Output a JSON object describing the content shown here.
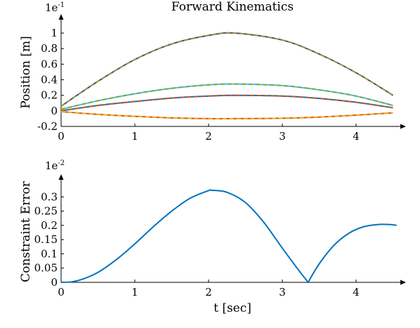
{
  "chart_data": [
    {
      "type": "line",
      "title": "Forward Kinematics",
      "xlabel": "",
      "ylabel": "Position [m]",
      "exponent_label": {
        "base": "1e",
        "power": "-1"
      },
      "xlim": [
        0,
        4.6
      ],
      "ylim": [
        -0.2,
        1.1
      ],
      "x_ticks": [
        "0",
        "1",
        "2",
        "3",
        "4"
      ],
      "x_tick_values": [
        0,
        1,
        2,
        3,
        4
      ],
      "y_ticks": [
        "-0.2",
        "0",
        "0.2",
        "0.4",
        "0.6",
        "0.8",
        "1"
      ],
      "y_tick_values": [
        -0.2,
        0,
        0.2,
        0.4,
        0.6,
        0.8,
        1
      ],
      "series": [
        {
          "color": "#7E2F8E",
          "style": "solid",
          "x": [
            0,
            0.5,
            1,
            1.5,
            2,
            2.36,
            3,
            3.5,
            4,
            4.5
          ],
          "values": [
            0.06,
            0.38,
            0.66,
            0.86,
            0.97,
            1.0,
            0.91,
            0.73,
            0.49,
            0.2
          ]
        },
        {
          "color": "#77AC30",
          "style": "dashed",
          "x": [
            0,
            0.5,
            1,
            1.5,
            2,
            2.36,
            3,
            3.5,
            4,
            4.5
          ],
          "values": [
            0.06,
            0.38,
            0.66,
            0.86,
            0.97,
            1.0,
            0.91,
            0.73,
            0.49,
            0.2
          ]
        },
        {
          "color": "#4DBEEE",
          "style": "solid",
          "x": [
            0,
            0.5,
            1,
            1.5,
            2,
            2.36,
            3,
            3.5,
            4,
            4.5
          ],
          "values": [
            0.02,
            0.13,
            0.22,
            0.29,
            0.335,
            0.345,
            0.325,
            0.27,
            0.19,
            0.07
          ]
        },
        {
          "color": "#77AC30",
          "style": "dashed",
          "x": [
            0,
            0.5,
            1,
            1.5,
            2,
            2.36,
            3,
            3.5,
            4,
            4.5
          ],
          "values": [
            0.02,
            0.13,
            0.22,
            0.29,
            0.335,
            0.345,
            0.325,
            0.27,
            0.19,
            0.07
          ]
        },
        {
          "color": "#0072BD",
          "style": "solid",
          "x": [
            0,
            0.5,
            1,
            1.5,
            2,
            2.36,
            3,
            3.5,
            4,
            4.5
          ],
          "values": [
            0.0,
            0.07,
            0.12,
            0.165,
            0.19,
            0.2,
            0.19,
            0.16,
            0.11,
            0.04
          ]
        },
        {
          "color": "#D95319",
          "style": "dashed",
          "x": [
            0,
            0.5,
            1,
            1.5,
            2,
            2.36,
            3,
            3.5,
            4,
            4.5
          ],
          "values": [
            0.0,
            0.07,
            0.12,
            0.165,
            0.19,
            0.2,
            0.19,
            0.16,
            0.11,
            0.04
          ]
        },
        {
          "color": "#D95319",
          "style": "solid",
          "x": [
            0,
            0.5,
            1,
            1.5,
            2,
            2.36,
            3,
            3.5,
            4,
            4.5
          ],
          "values": [
            -0.01,
            -0.045,
            -0.07,
            -0.09,
            -0.1,
            -0.1,
            -0.095,
            -0.08,
            -0.055,
            -0.025
          ]
        },
        {
          "color": "#EDB120",
          "style": "dashed",
          "x": [
            0,
            0.5,
            1,
            1.5,
            2,
            2.36,
            3,
            3.5,
            4,
            4.5
          ],
          "values": [
            -0.01,
            -0.045,
            -0.07,
            -0.09,
            -0.1,
            -0.1,
            -0.095,
            -0.08,
            -0.055,
            -0.025
          ]
        }
      ]
    },
    {
      "type": "line",
      "title": "",
      "xlabel": "t [sec]",
      "ylabel": "Constraint Error",
      "exponent_label": {
        "base": "1e",
        "power": "-2"
      },
      "xlim": [
        0,
        4.6
      ],
      "ylim": [
        0,
        0.35
      ],
      "x_ticks": [
        "0",
        "1",
        "2",
        "3",
        "4"
      ],
      "x_tick_values": [
        0,
        1,
        2,
        3,
        4
      ],
      "y_ticks": [
        "0",
        "0.05",
        "0.1",
        "0.15",
        "0.2",
        "0.25",
        "0.3"
      ],
      "y_tick_values": [
        0,
        0.05,
        0.1,
        0.15,
        0.2,
        0.25,
        0.3
      ],
      "series": [
        {
          "color": "#0072BD",
          "style": "solid",
          "x": [
            0,
            0.15,
            0.3,
            0.5,
            0.75,
            1.0,
            1.25,
            1.5,
            1.75,
            2.0,
            2.05,
            2.25,
            2.5,
            2.75,
            3.0,
            3.2,
            3.35,
            3.5,
            3.7,
            3.9,
            4.1,
            4.3,
            4.45,
            4.55
          ],
          "values": [
            0,
            0.002,
            0.012,
            0.035,
            0.08,
            0.135,
            0.195,
            0.25,
            0.295,
            0.322,
            0.323,
            0.316,
            0.28,
            0.21,
            0.12,
            0.05,
            0.0,
            0.065,
            0.13,
            0.172,
            0.195,
            0.203,
            0.203,
            0.2
          ]
        }
      ]
    }
  ]
}
